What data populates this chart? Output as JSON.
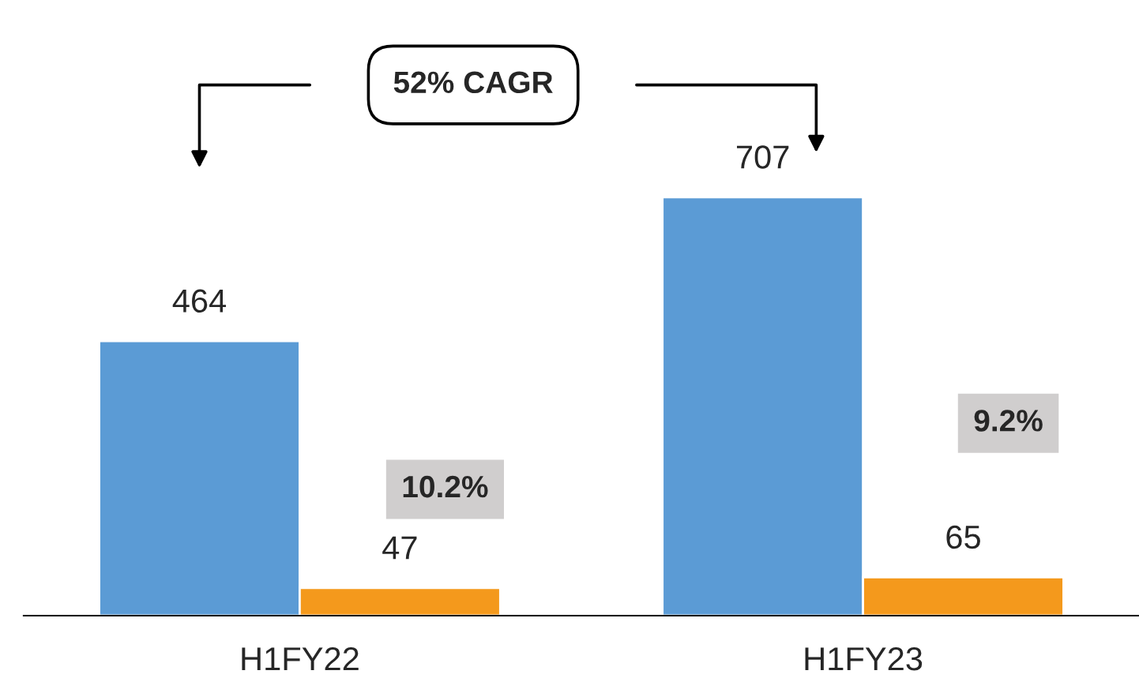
{
  "chart_data": {
    "type": "bar",
    "categories": [
      "H1FY22",
      "H1FY23"
    ],
    "series": [
      {
        "color": "#5b9bd5",
        "values": [
          464,
          707
        ]
      },
      {
        "color": "#f4991c",
        "values": [
          47,
          65
        ]
      }
    ],
    "data_labels": true,
    "annotations": [
      "52% CAGR",
      "10.2%",
      "9.2%"
    ]
  }
}
